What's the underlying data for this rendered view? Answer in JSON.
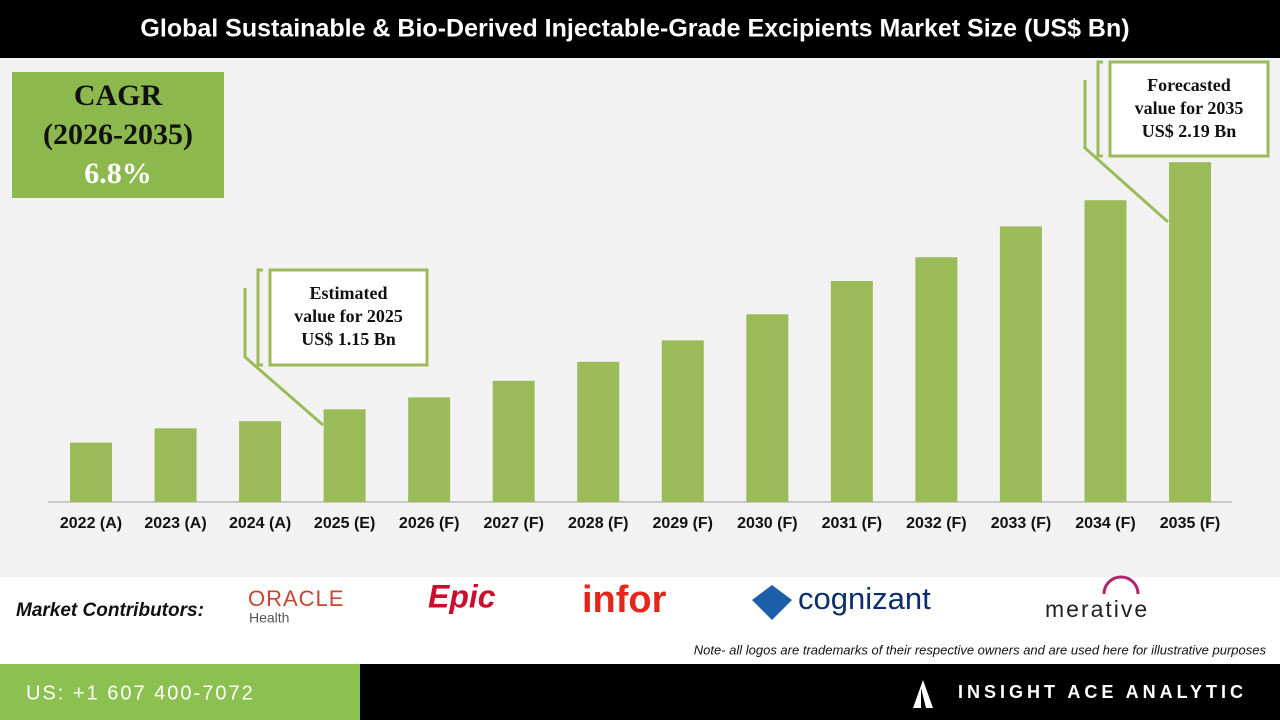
{
  "chart_data": {
    "type": "bar",
    "title": "Global Sustainable & Bio-Derived Injectable-Grade Excipients Market Size (US$ Bn)",
    "categories": [
      "2022 (A)",
      "2023 (A)",
      "2024 (A)",
      "2025 (E)",
      "2026 (F)",
      "2027 (F)",
      "2028 (F)",
      "2029 (F)",
      "2030 (F)",
      "2031 (F)",
      "2032 (F)",
      "2033 (F)",
      "2034 (F)",
      "2035 (F)"
    ],
    "values": [
      1.01,
      1.07,
      1.1,
      1.15,
      1.2,
      1.27,
      1.35,
      1.44,
      1.55,
      1.69,
      1.79,
      1.92,
      2.03,
      2.19
    ],
    "color": "#9bbb59",
    "ylim": [
      0.76,
      2.62
    ],
    "cagr": {
      "label": "CAGR",
      "period": "(2026-2035)",
      "value": "6.8%"
    },
    "annotations": [
      {
        "lines": [
          "Estimated",
          "value for 2025",
          "US$ 1.15 Bn"
        ]
      },
      {
        "lines": [
          "Forecasted",
          "value for 2035",
          "US$ 2.19 Bn"
        ]
      }
    ]
  },
  "footer": {
    "contributors_label": "Market Contributors:",
    "logos": [
      "ORACLE",
      "Health",
      "Epic",
      "infor",
      "cognizant",
      "merative"
    ],
    "note": "Note- all logos are trademarks of their respective owners and are used here for illustrative purposes",
    "phone": "US: +1 607 400-7072",
    "brand": "INSIGHT ACE ANALYTIC"
  }
}
